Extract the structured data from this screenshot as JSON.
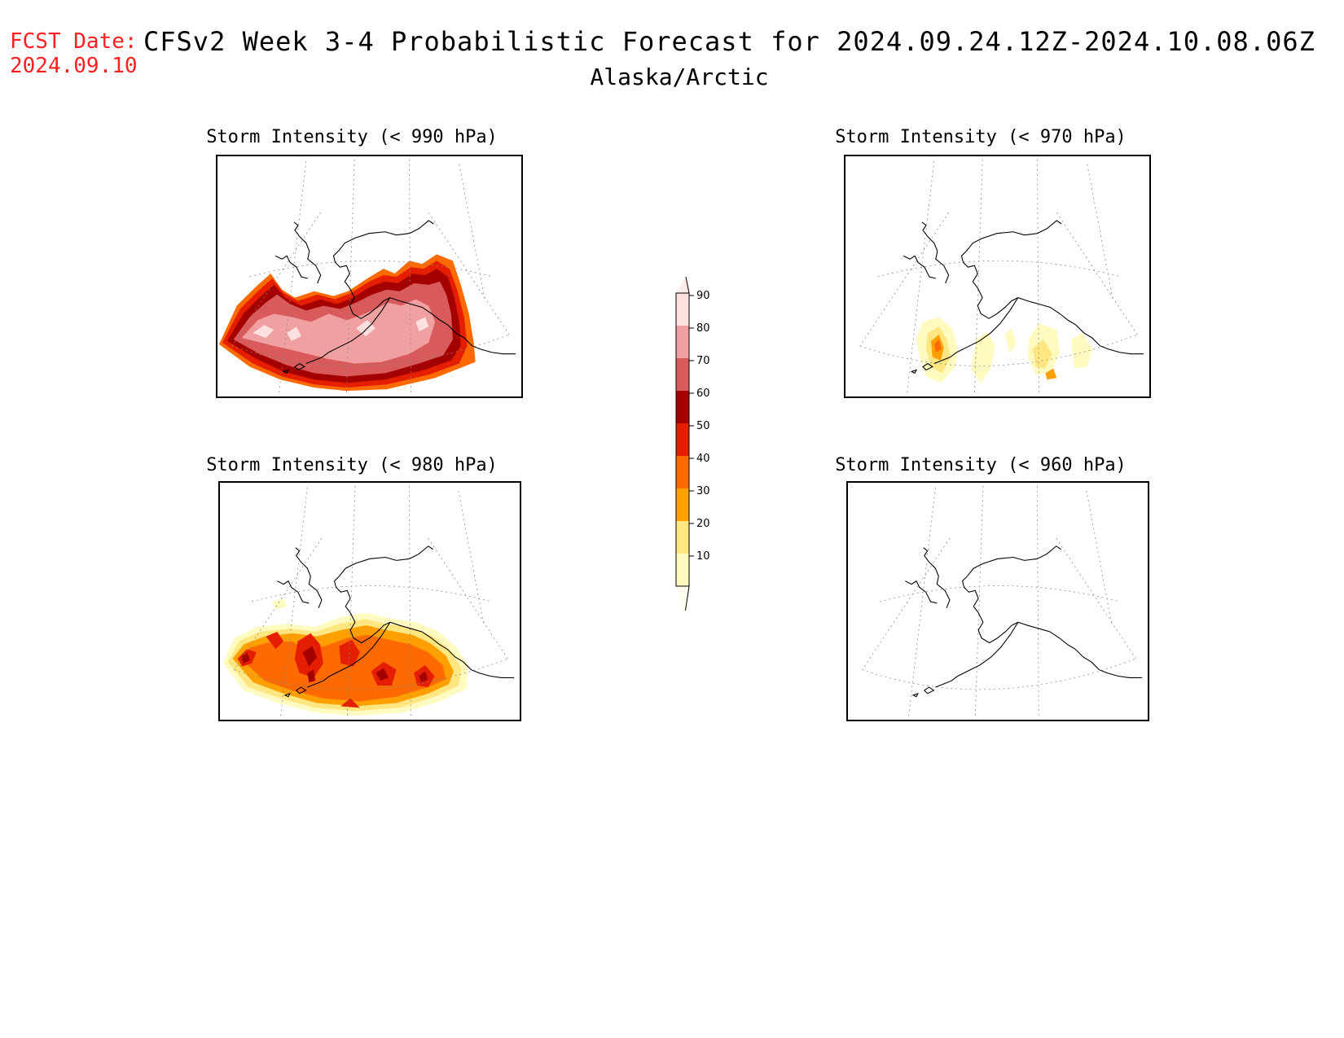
{
  "header": {
    "fcst_label": "FCST Date:",
    "fcst_date": "2024.09.10",
    "title": "CFSv2 Week 3-4 Probabilistic Forecast for 2024.09.24.12Z-2024.10.08.06Z",
    "region": "Alaska/Arctic"
  },
  "panels": [
    {
      "id": "p990",
      "title": "Storm Intensity (< 990 hPa)",
      "level": "high"
    },
    {
      "id": "p970",
      "title": "Storm Intensity (< 970 hPa)",
      "level": "low"
    },
    {
      "id": "p980",
      "title": "Storm Intensity (< 980 hPa)",
      "level": "mid"
    },
    {
      "id": "p960",
      "title": "Storm Intensity (< 960 hPa)",
      "level": "none"
    }
  ],
  "colorbar": {
    "labels": [
      "10",
      "20",
      "30",
      "40",
      "50",
      "60",
      "70",
      "80",
      "90"
    ],
    "colors": [
      "#fffac0",
      "#ffe680",
      "#ff9f00",
      "#ff6a00",
      "#e61e00",
      "#a50000",
      "#d85a5a",
      "#f0a0a0",
      "#ffe0e0"
    ]
  }
}
